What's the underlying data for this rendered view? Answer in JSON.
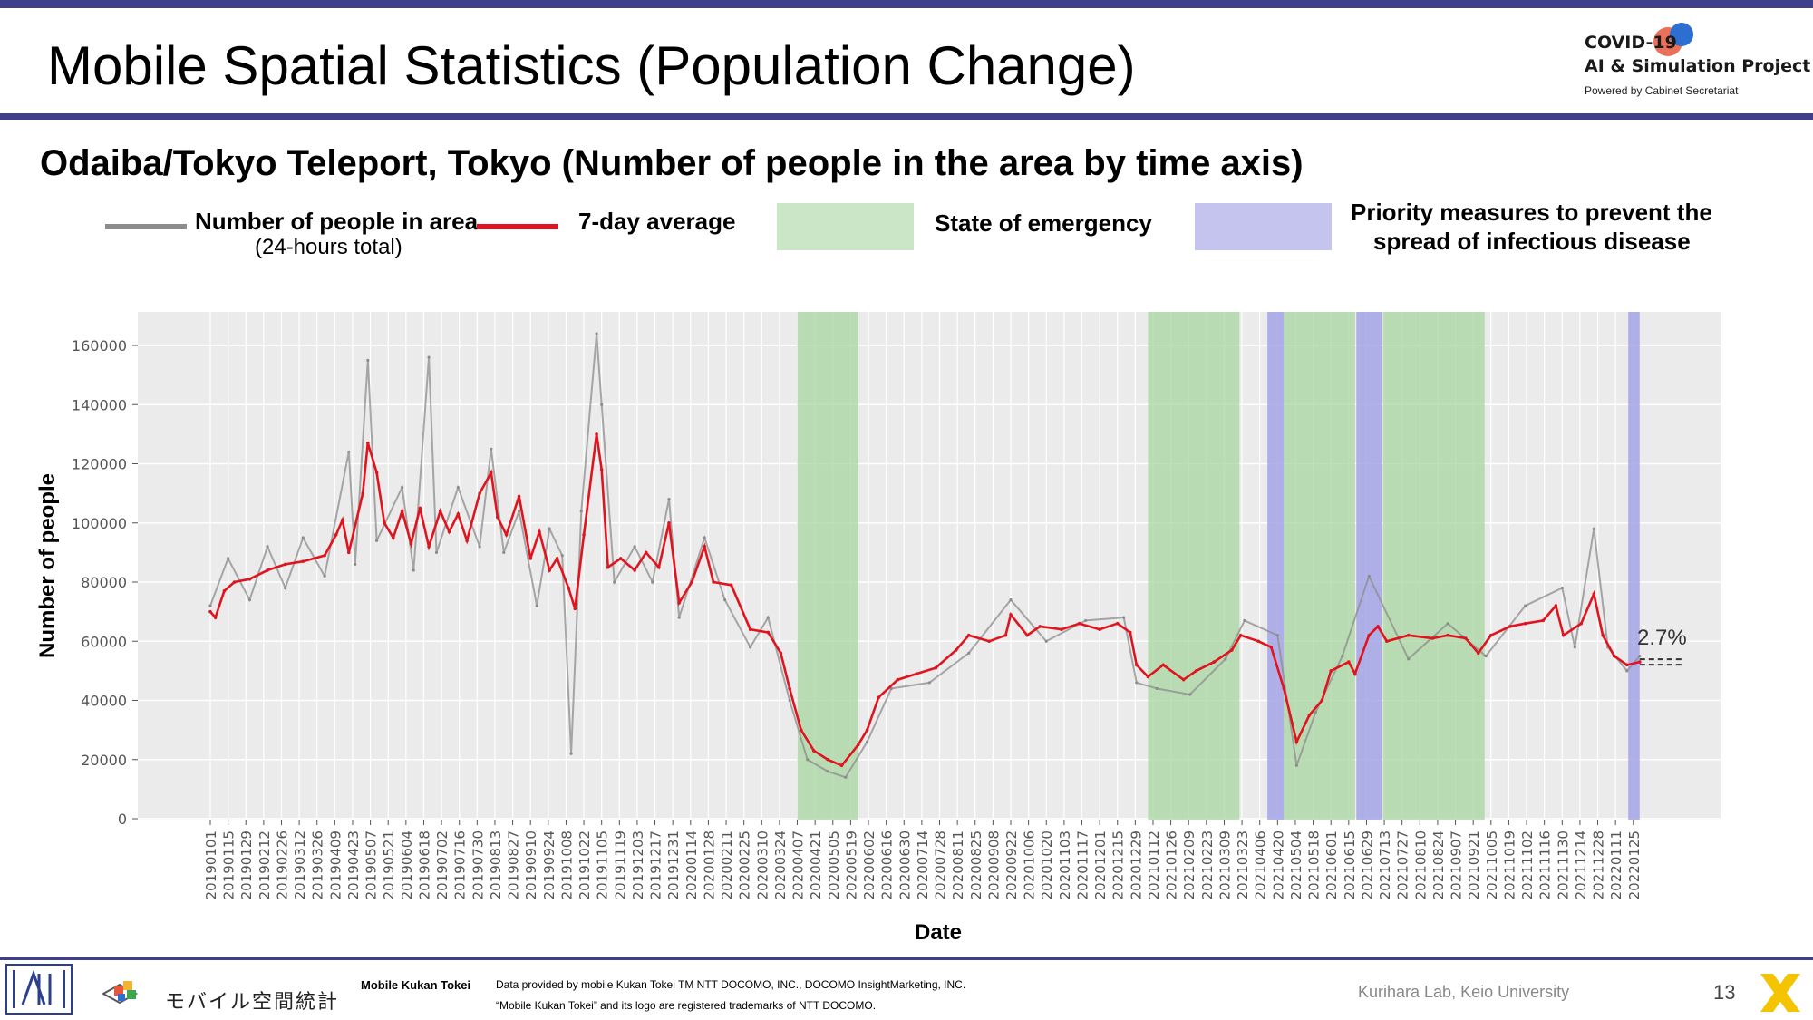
{
  "slide": {
    "title": "Mobile Spatial Statistics (Population Change)",
    "subtitle": "Odaiba/Tokyo Teleport, Tokyo (Number of people in the area by time axis)",
    "brand_line1": "COVID-19",
    "brand_line2": "AI & Simulation Project",
    "brand_line3": "Powered by Cabinet Secretariat",
    "page_number": "13"
  },
  "legend": {
    "raw_label": "Number of people in area",
    "raw_sublabel": "(24-hours total)",
    "avg_label": "7-day average",
    "emergency_label": "State of emergency",
    "priority_label_line1": "Priority measures to prevent the",
    "priority_label_line2": "spread of infectious disease"
  },
  "footer": {
    "logo_text": "モバイル空間統計",
    "product_name": "Mobile Kukan Tokei",
    "credit_line1": "Data provided by mobile Kukan Tokei TM NTT DOCOMO, INC., DOCOMO InsightMarketing, INC.",
    "credit_line2": "“Mobile Kukan Tokei” and its logo are registered trademarks of NTT DOCOMO.",
    "lab": "Kurihara Lab, Keio University"
  },
  "colors": {
    "accent_bar": "#3f3f8c",
    "raw_series": "#8c8c8c",
    "avg_series": "#e0141e",
    "emergency_band": "#a8d5a0",
    "priority_band": "#a4a4e6",
    "plot_bg": "#ebebeb"
  },
  "chart_data": {
    "type": "line",
    "xlabel": "Date",
    "ylabel": "Number of people",
    "ylim": [
      0,
      170000
    ],
    "yticks": [
      0,
      20000,
      40000,
      60000,
      80000,
      100000,
      120000,
      140000,
      160000
    ],
    "x_tick_labels": [
      "20190101",
      "20190115",
      "20190129",
      "20190212",
      "20190226",
      "20190312",
      "20190326",
      "20190409",
      "20190423",
      "20190507",
      "20190521",
      "20190604",
      "20190618",
      "20190702",
      "20190716",
      "20190730",
      "20190813",
      "20190827",
      "20190910",
      "20190924",
      "20191008",
      "20191022",
      "20191105",
      "20191119",
      "20191203",
      "20191217",
      "20191231",
      "20200114",
      "20200128",
      "20200211",
      "20200225",
      "20200310",
      "20200324",
      "20200407",
      "20200421",
      "20200505",
      "20200519",
      "20200602",
      "20200616",
      "20200630",
      "20200714",
      "20200728",
      "20200811",
      "20200825",
      "20200908",
      "20200922",
      "20201006",
      "20201020",
      "20201103",
      "20201117",
      "20201201",
      "20201215",
      "20201229",
      "20210112",
      "20210126",
      "20210209",
      "20210223",
      "20210309",
      "20210323",
      "20210406",
      "20210420",
      "20210504",
      "20210518",
      "20210601",
      "20210615",
      "20210629",
      "20210713",
      "20210727",
      "20210810",
      "20210824",
      "20210907",
      "20210921",
      "20211005",
      "20211019",
      "20211102",
      "20211116",
      "20211130",
      "20211214",
      "20211228",
      "20220111",
      "20220125"
    ],
    "x_start": "20190101",
    "x_end": "20220207",
    "annotation": "2.7%",
    "emergency_periods": [
      [
        "20200407",
        "20200525"
      ],
      [
        "20210108",
        "20210321"
      ],
      [
        "20210425",
        "20210620"
      ],
      [
        "20210712",
        "20210930"
      ]
    ],
    "priority_periods": [
      [
        "20210412",
        "20210425"
      ],
      [
        "20210621",
        "20210711"
      ],
      [
        "20220121",
        "20220130"
      ]
    ],
    "series": [
      {
        "name": "7-day average",
        "points": [
          [
            "20190101",
            70000
          ],
          [
            "20190105",
            68000
          ],
          [
            "20190112",
            77000
          ],
          [
            "20190120",
            80000
          ],
          [
            "20190201",
            81000
          ],
          [
            "20190215",
            84000
          ],
          [
            "20190301",
            86000
          ],
          [
            "20190315",
            87000
          ],
          [
            "20190401",
            89000
          ],
          [
            "20190410",
            96000
          ],
          [
            "20190415",
            101000
          ],
          [
            "20190420",
            90000
          ],
          [
            "20190501",
            110000
          ],
          [
            "20190505",
            127000
          ],
          [
            "20190512",
            117000
          ],
          [
            "20190518",
            100000
          ],
          [
            "20190525",
            95000
          ],
          [
            "20190601",
            104000
          ],
          [
            "20190608",
            93000
          ],
          [
            "20190615",
            105000
          ],
          [
            "20190622",
            92000
          ],
          [
            "20190701",
            104000
          ],
          [
            "20190708",
            97000
          ],
          [
            "20190715",
            103000
          ],
          [
            "20190722",
            94000
          ],
          [
            "20190801",
            110000
          ],
          [
            "20190810",
            117000
          ],
          [
            "20190815",
            102000
          ],
          [
            "20190822",
            96000
          ],
          [
            "20190901",
            109000
          ],
          [
            "20190910",
            88000
          ],
          [
            "20190917",
            97000
          ],
          [
            "20190925",
            84000
          ],
          [
            "20191001",
            88000
          ],
          [
            "20191010",
            78000
          ],
          [
            "20191015",
            71000
          ],
          [
            "20191022",
            96000
          ],
          [
            "20191101",
            130000
          ],
          [
            "20191105",
            118000
          ],
          [
            "20191110",
            85000
          ],
          [
            "20191120",
            88000
          ],
          [
            "20191201",
            84000
          ],
          [
            "20191210",
            90000
          ],
          [
            "20191220",
            85000
          ],
          [
            "20191228",
            100000
          ],
          [
            "20200105",
            73000
          ],
          [
            "20200115",
            80000
          ],
          [
            "20200125",
            92000
          ],
          [
            "20200201",
            80000
          ],
          [
            "20200215",
            79000
          ],
          [
            "20200301",
            64000
          ],
          [
            "20200315",
            63000
          ],
          [
            "20200325",
            56000
          ],
          [
            "20200401",
            44000
          ],
          [
            "20200410",
            30000
          ],
          [
            "20200420",
            23000
          ],
          [
            "20200501",
            20000
          ],
          [
            "20200512",
            18000
          ],
          [
            "20200525",
            25000
          ],
          [
            "20200601",
            30000
          ],
          [
            "20200610",
            41000
          ],
          [
            "20200625",
            47000
          ],
          [
            "20200710",
            49000
          ],
          [
            "20200725",
            51000
          ],
          [
            "20200810",
            57000
          ],
          [
            "20200820",
            62000
          ],
          [
            "20200905",
            60000
          ],
          [
            "20200918",
            62000
          ],
          [
            "20200922",
            69000
          ],
          [
            "20201005",
            62000
          ],
          [
            "20201015",
            65000
          ],
          [
            "20201101",
            64000
          ],
          [
            "20201115",
            66000
          ],
          [
            "20201201",
            64000
          ],
          [
            "20201215",
            66000
          ],
          [
            "20201225",
            63000
          ],
          [
            "20201230",
            52000
          ],
          [
            "20210108",
            48000
          ],
          [
            "20210120",
            52000
          ],
          [
            "20210205",
            47000
          ],
          [
            "20210215",
            50000
          ],
          [
            "20210301",
            53000
          ],
          [
            "20210315",
            57000
          ],
          [
            "20210322",
            62000
          ],
          [
            "20210405",
            60000
          ],
          [
            "20210415",
            58000
          ],
          [
            "20210425",
            44000
          ],
          [
            "20210505",
            26000
          ],
          [
            "20210515",
            35000
          ],
          [
            "20210525",
            40000
          ],
          [
            "20210601",
            50000
          ],
          [
            "20210615",
            53000
          ],
          [
            "20210620",
            49000
          ],
          [
            "20210701",
            62000
          ],
          [
            "20210708",
            65000
          ],
          [
            "20210715",
            60000
          ],
          [
            "20210801",
            62000
          ],
          [
            "20210820",
            61000
          ],
          [
            "20210901",
            62000
          ],
          [
            "20210915",
            61000
          ],
          [
            "20210925",
            56000
          ],
          [
            "20211005",
            62000
          ],
          [
            "20211020",
            65000
          ],
          [
            "20211101",
            66000
          ],
          [
            "20211115",
            67000
          ],
          [
            "20211125",
            72000
          ],
          [
            "20211201",
            62000
          ],
          [
            "20211215",
            66000
          ],
          [
            "20211225",
            76000
          ],
          [
            "20220101",
            62000
          ],
          [
            "20220110",
            55000
          ],
          [
            "20220120",
            52000
          ],
          [
            "20220130",
            53000
          ]
        ]
      },
      {
        "name": "Number of people in area",
        "points": [
          [
            "20190101",
            72000
          ],
          [
            "20190115",
            88000
          ],
          [
            "20190201",
            74000
          ],
          [
            "20190215",
            92000
          ],
          [
            "20190301",
            78000
          ],
          [
            "20190315",
            95000
          ],
          [
            "20190401",
            82000
          ],
          [
            "20190420",
            124000
          ],
          [
            "20190425",
            86000
          ],
          [
            "20190505",
            155000
          ],
          [
            "20190512",
            94000
          ],
          [
            "20190601",
            112000
          ],
          [
            "20190610",
            84000
          ],
          [
            "20190622",
            156000
          ],
          [
            "20190628",
            90000
          ],
          [
            "20190715",
            112000
          ],
          [
            "20190801",
            92000
          ],
          [
            "20190810",
            125000
          ],
          [
            "20190820",
            90000
          ],
          [
            "20190901",
            104000
          ],
          [
            "20190915",
            72000
          ],
          [
            "20190925",
            98000
          ],
          [
            "20191005",
            89000
          ],
          [
            "20191012",
            22000
          ],
          [
            "20191020",
            104000
          ],
          [
            "20191101",
            164000
          ],
          [
            "20191105",
            140000
          ],
          [
            "20191115",
            80000
          ],
          [
            "20191201",
            92000
          ],
          [
            "20191215",
            80000
          ],
          [
            "20191228",
            108000
          ],
          [
            "20200105",
            68000
          ],
          [
            "20200125",
            95000
          ],
          [
            "20200210",
            74000
          ],
          [
            "20200301",
            58000
          ],
          [
            "20200315",
            68000
          ],
          [
            "20200401",
            40000
          ],
          [
            "20200415",
            20000
          ],
          [
            "20200501",
            16000
          ],
          [
            "20200515",
            14000
          ],
          [
            "20200601",
            26000
          ],
          [
            "20200620",
            44000
          ],
          [
            "20200720",
            46000
          ],
          [
            "20200820",
            56000
          ],
          [
            "20200922",
            74000
          ],
          [
            "20201020",
            60000
          ],
          [
            "20201120",
            67000
          ],
          [
            "20201220",
            68000
          ],
          [
            "20201230",
            46000
          ],
          [
            "20210115",
            44000
          ],
          [
            "20210210",
            42000
          ],
          [
            "20210310",
            54000
          ],
          [
            "20210325",
            67000
          ],
          [
            "20210420",
            62000
          ],
          [
            "20210505",
            18000
          ],
          [
            "20210520",
            36000
          ],
          [
            "20210610",
            55000
          ],
          [
            "20210701",
            82000
          ],
          [
            "20210801",
            54000
          ],
          [
            "20210901",
            66000
          ],
          [
            "20211001",
            55000
          ],
          [
            "20211101",
            72000
          ],
          [
            "20211130",
            78000
          ],
          [
            "20211210",
            58000
          ],
          [
            "20211225",
            98000
          ],
          [
            "20220105",
            58000
          ],
          [
            "20220120",
            50000
          ],
          [
            "20220130",
            55000
          ]
        ]
      }
    ]
  }
}
